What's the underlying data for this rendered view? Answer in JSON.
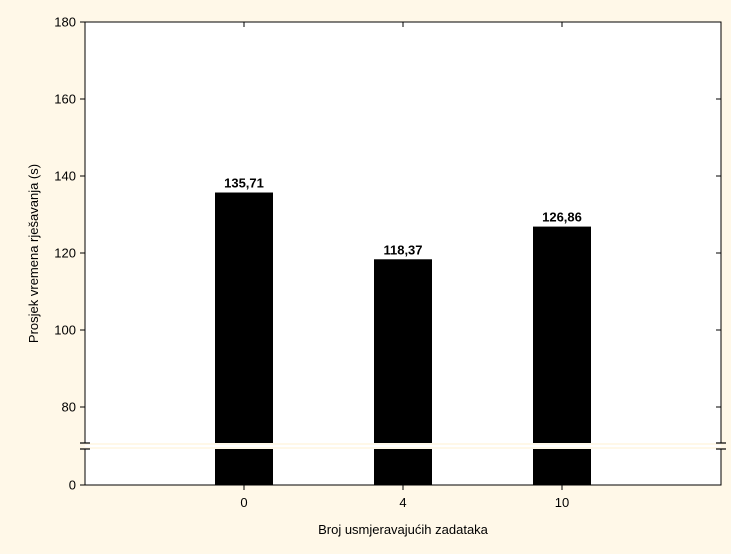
{
  "chart_data": {
    "type": "bar",
    "title": "",
    "xlabel": "Broj usmjeravajućih zadataka",
    "ylabel": "Prosjek vremena rješavanja (s)",
    "categories": [
      "0",
      "4",
      "10"
    ],
    "values": [
      135.71,
      118.37,
      126.86
    ],
    "value_labels": [
      "135,71",
      "118,37",
      "126,86"
    ],
    "ylim": [
      0,
      180
    ],
    "axis_break": [
      0,
      70
    ],
    "yticks": [
      0,
      80,
      100,
      120,
      140,
      160,
      180
    ],
    "ytick_labels": [
      "0",
      "80",
      "100",
      "120",
      "140",
      "160",
      "180"
    ],
    "grid": false,
    "colors": {
      "bar": "#000000",
      "background": "#fff8e8",
      "plot": "#ffffff"
    }
  }
}
